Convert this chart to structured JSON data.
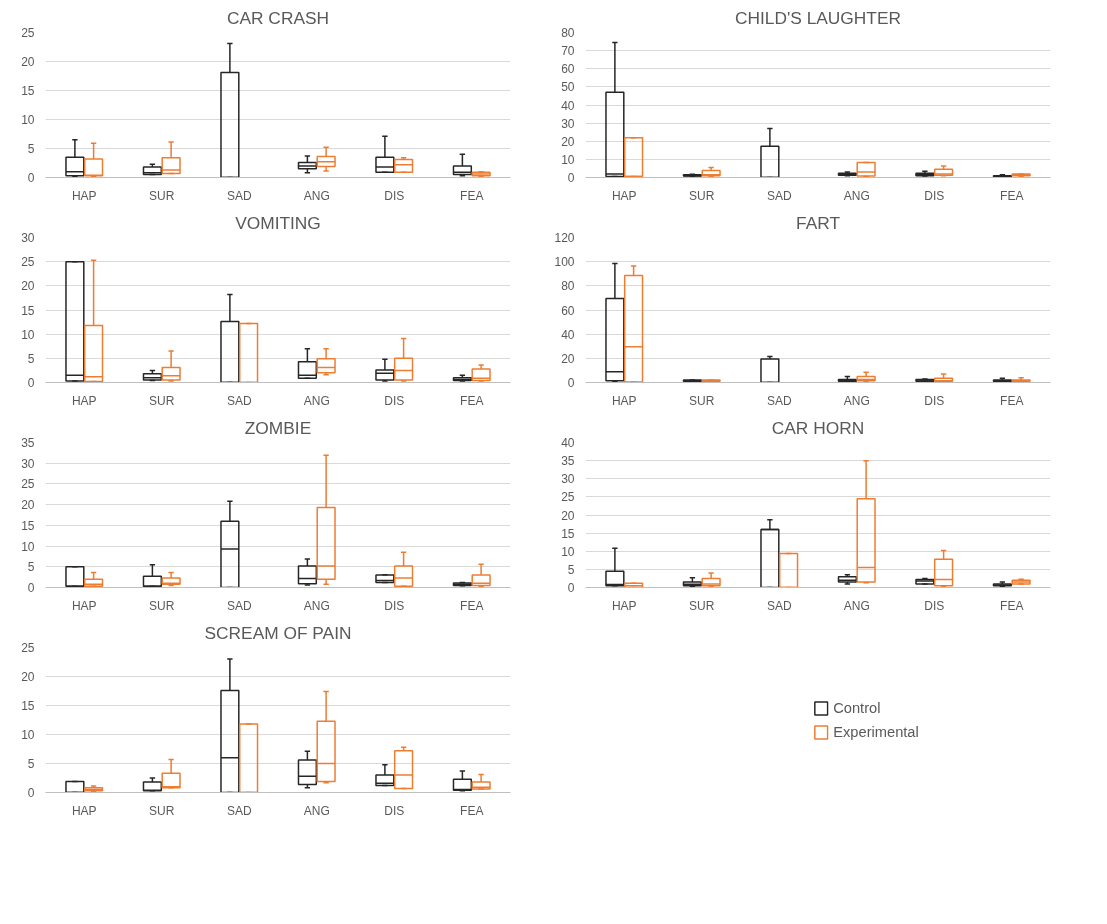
{
  "chart_data": [
    {
      "type": "box",
      "title": "CAR CRASH",
      "categories": [
        "HAP",
        "SUR",
        "SAD",
        "ANG",
        "DIS",
        "FEA"
      ],
      "ylim": [
        0,
        25
      ],
      "yticks": [
        0,
        5,
        10,
        15,
        20,
        25
      ],
      "grid": "y",
      "series": [
        {
          "color": "#262626",
          "boxes": [
            {
              "low": 0.2,
              "q1": 0.3,
              "median": 1,
              "q3": 3.5,
              "high": 6.5
            },
            {
              "low": 0.5,
              "q1": 0.5,
              "median": 0.8,
              "q3": 1.8,
              "high": 2.3
            },
            {
              "low": 0,
              "q1": 0,
              "median": 0,
              "q3": 18.1,
              "high": 23.1
            },
            {
              "low": 0.8,
              "q1": 1.5,
              "median": 2,
              "q3": 2.6,
              "high": 3.7
            },
            {
              "low": 0.9,
              "q1": 0.9,
              "median": 1.8,
              "q3": 3.5,
              "high": 7.1
            },
            {
              "low": 0.3,
              "q1": 0.5,
              "median": 0.9,
              "q3": 2,
              "high": 4
            }
          ]
        },
        {
          "color": "#ed7d31",
          "boxes": [
            {
              "low": 0.2,
              "q1": 0.3,
              "median": 0.4,
              "q3": 3.2,
              "high": 5.9
            },
            {
              "low": 0.7,
              "q1": 0.7,
              "median": 1.3,
              "q3": 3.4,
              "high": 6.1
            },
            null,
            {
              "low": 1.1,
              "q1": 1.9,
              "median": 2.7,
              "q3": 3.6,
              "high": 5.2
            },
            {
              "low": 0.9,
              "q1": 0.9,
              "median": 2.2,
              "q3": 3.1,
              "high": 3.4
            },
            {
              "low": 0.2,
              "q1": 0.3,
              "median": 0.6,
              "q3": 0.9,
              "high": 1
            }
          ]
        }
      ]
    },
    {
      "type": "box",
      "title": "CHILD'S LAUGHTER",
      "categories": [
        "HAP",
        "SUR",
        "SAD",
        "ANG",
        "DIS",
        "FEA"
      ],
      "ylim": [
        0,
        80
      ],
      "yticks": [
        0,
        10,
        20,
        30,
        40,
        50,
        60,
        70,
        80
      ],
      "grid": "y",
      "series": [
        {
          "color": "#262626",
          "boxes": [
            {
              "low": 0.5,
              "q1": 0.5,
              "median": 2,
              "q3": 47,
              "high": 74.5
            },
            {
              "low": 0.5,
              "q1": 0.8,
              "median": 1,
              "q3": 1.5,
              "high": 1.8
            },
            {
              "low": 0,
              "q1": 0,
              "median": 0,
              "q3": 17.3,
              "high": 27
            },
            {
              "low": 1,
              "q1": 1.2,
              "median": 1.8,
              "q3": 2.3,
              "high": 3
            },
            {
              "low": 0.8,
              "q1": 1,
              "median": 1.5,
              "q3": 2.3,
              "high": 3.5
            },
            {
              "low": 0.3,
              "q1": 0.5,
              "median": 0.7,
              "q3": 1,
              "high": 1.5
            }
          ]
        },
        {
          "color": "#ed7d31",
          "boxes": [
            {
              "low": 0.5,
              "q1": 0.5,
              "median": 0.5,
              "q3": 22,
              "high": 22
            },
            {
              "low": 0.5,
              "q1": 1,
              "median": 1.5,
              "q3": 3.8,
              "high": 5.5
            },
            null,
            {
              "low": 0.5,
              "q1": 0.8,
              "median": 3,
              "q3": 8.3,
              "high": 8.3
            },
            {
              "low": 1,
              "q1": 1.3,
              "median": 2,
              "q3": 4.5,
              "high": 6.3
            },
            {
              "low": 0.5,
              "q1": 1,
              "median": 1.5,
              "q3": 2,
              "high": 2
            }
          ]
        }
      ]
    },
    {
      "type": "box",
      "title": "VOMITING",
      "categories": [
        "HAP",
        "SUR",
        "SAD",
        "ANG",
        "DIS",
        "FEA"
      ],
      "ylim": [
        0,
        30
      ],
      "yticks": [
        0,
        5,
        10,
        15,
        20,
        25,
        30
      ],
      "grid": "y",
      "series": [
        {
          "color": "#262626",
          "boxes": [
            {
              "low": 0.3,
              "q1": 0.3,
              "median": 1.5,
              "q3": 25,
              "high": 25
            },
            {
              "low": 0.4,
              "q1": 0.5,
              "median": 1,
              "q3": 1.8,
              "high": 2.5
            },
            {
              "low": 0,
              "q1": 0,
              "median": 0,
              "q3": 12.6,
              "high": 18.2
            },
            {
              "low": 0.9,
              "q1": 0.9,
              "median": 1.5,
              "q3": 4.3,
              "high": 7
            },
            {
              "low": 0.3,
              "q1": 0.5,
              "median": 1.9,
              "q3": 2.6,
              "high": 4.8
            },
            {
              "low": 0.3,
              "q1": 0.4,
              "median": 0.6,
              "q3": 1,
              "high": 1.5
            }
          ]
        },
        {
          "color": "#ed7d31",
          "boxes": [
            {
              "low": 0.2,
              "q1": 0.2,
              "median": 1.2,
              "q3": 11.8,
              "high": 25.3
            },
            {
              "low": 0.3,
              "q1": 0.5,
              "median": 1.4,
              "q3": 3.1,
              "high": 6.5
            },
            {
              "low": 0,
              "q1": 0,
              "median": 0,
              "q3": 12.2,
              "high": 12.2
            },
            {
              "low": 1.6,
              "q1": 2,
              "median": 3.1,
              "q3": 4.9,
              "high": 7
            },
            {
              "low": 0.3,
              "q1": 0.5,
              "median": 2.5,
              "q3": 5,
              "high": 9.1
            },
            {
              "low": 0.3,
              "q1": 0.4,
              "median": 0.9,
              "q3": 2.8,
              "high": 3.6
            }
          ]
        }
      ]
    },
    {
      "type": "box",
      "title": "FART",
      "categories": [
        "HAP",
        "SUR",
        "SAD",
        "ANG",
        "DIS",
        "FEA"
      ],
      "ylim": [
        0,
        120
      ],
      "yticks": [
        0,
        20,
        40,
        60,
        80,
        100,
        120
      ],
      "grid": "y",
      "series": [
        {
          "color": "#262626",
          "boxes": [
            {
              "low": 1,
              "q1": 1.5,
              "median": 9,
              "q3": 69.5,
              "high": 98.5
            },
            {
              "low": 1,
              "q1": 1,
              "median": 1.5,
              "q3": 2,
              "high": 2
            },
            {
              "low": 0,
              "q1": 0,
              "median": 0,
              "q3": 19.5,
              "high": 21.5
            },
            {
              "low": 0.5,
              "q1": 1,
              "median": 1.5,
              "q3": 2.5,
              "high": 5
            },
            {
              "low": 1,
              "q1": 1,
              "median": 2,
              "q3": 2.5,
              "high": 3
            },
            {
              "low": 0.5,
              "q1": 1,
              "median": 1.5,
              "q3": 2,
              "high": 3.5
            }
          ]
        },
        {
          "color": "#ed7d31",
          "boxes": [
            {
              "low": 0.5,
              "q1": 0.5,
              "median": 29.5,
              "q3": 88.5,
              "high": 96.5
            },
            {
              "low": 1,
              "q1": 1,
              "median": 1.5,
              "q3": 2,
              "high": 2
            },
            null,
            {
              "low": 1,
              "q1": 1.5,
              "median": 2.5,
              "q3": 5,
              "high": 8.5
            },
            {
              "low": 0.5,
              "q1": 1,
              "median": 1.5,
              "q3": 3.5,
              "high": 7
            },
            {
              "low": 0.5,
              "q1": 1,
              "median": 1.5,
              "q3": 2,
              "high": 4
            }
          ]
        }
      ]
    },
    {
      "type": "box",
      "title": "ZOMBIE",
      "categories": [
        "HAP",
        "SUR",
        "SAD",
        "ANG",
        "DIS",
        "FEA"
      ],
      "ylim": [
        0,
        35
      ],
      "yticks": [
        0,
        5,
        10,
        15,
        20,
        25,
        30,
        35
      ],
      "grid": "y",
      "series": [
        {
          "color": "#262626",
          "boxes": [
            {
              "low": 0.3,
              "q1": 0.3,
              "median": 0.3,
              "q3": 5,
              "high": 5
            },
            {
              "low": 0.3,
              "q1": 0.3,
              "median": 0.3,
              "q3": 2.7,
              "high": 5.5
            },
            {
              "low": 0,
              "q1": 0,
              "median": 9.3,
              "q3": 16,
              "high": 20.8
            },
            {
              "low": 0.6,
              "q1": 0.9,
              "median": 2.2,
              "q3": 5.2,
              "high": 6.9
            },
            {
              "low": 1.2,
              "q1": 1.2,
              "median": 1.7,
              "q3": 3,
              "high": 3.1
            },
            {
              "low": 0.4,
              "q1": 0.5,
              "median": 0.8,
              "q3": 1.1,
              "high": 1.2
            }
          ]
        },
        {
          "color": "#ed7d31",
          "boxes": [
            {
              "low": 0.3,
              "q1": 0.3,
              "median": 0.8,
              "q3": 2,
              "high": 3.6
            },
            {
              "low": 0.5,
              "q1": 0.8,
              "median": 1,
              "q3": 2.3,
              "high": 3.6
            },
            null,
            {
              "low": 0.8,
              "q1": 2,
              "median": 5.2,
              "q3": 19.3,
              "high": 31.9
            },
            {
              "low": 0.3,
              "q1": 0.3,
              "median": 2.3,
              "q3": 5.2,
              "high": 8.5
            },
            {
              "low": 0.3,
              "q1": 0.5,
              "median": 1,
              "q3": 3,
              "high": 5.6
            }
          ]
        }
      ]
    },
    {
      "type": "box",
      "title": "CAR HORN",
      "categories": [
        "HAP",
        "SUR",
        "SAD",
        "ANG",
        "DIS",
        "FEA"
      ],
      "ylim": [
        0,
        40
      ],
      "yticks": [
        0,
        5,
        10,
        15,
        20,
        25,
        30,
        35,
        40
      ],
      "grid": "y",
      "series": [
        {
          "color": "#262626",
          "boxes": [
            {
              "low": 0.5,
              "q1": 0.5,
              "median": 0.8,
              "q3": 4.5,
              "high": 10.8
            },
            {
              "low": 0.3,
              "q1": 0.5,
              "median": 0.9,
              "q3": 1.5,
              "high": 2.7
            },
            {
              "low": 0,
              "q1": 0,
              "median": 16,
              "q3": 16,
              "high": 18.7
            },
            {
              "low": 1,
              "q1": 1.5,
              "median": 2,
              "q3": 3,
              "high": 3.5
            },
            {
              "low": 1,
              "q1": 1,
              "median": 1.8,
              "q3": 2.2,
              "high": 2.5
            },
            {
              "low": 0.3,
              "q1": 0.5,
              "median": 0.7,
              "q3": 1,
              "high": 1.5
            }
          ]
        },
        {
          "color": "#ed7d31",
          "boxes": [
            {
              "low": 0,
              "q1": 0,
              "median": 0.5,
              "q3": 1.2,
              "high": 1.2
            },
            {
              "low": 0.3,
              "q1": 0.5,
              "median": 1,
              "q3": 2.5,
              "high": 4
            },
            {
              "low": 0,
              "q1": 0,
              "median": 0,
              "q3": 9.4,
              "high": 9.4
            },
            {
              "low": 1.3,
              "q1": 1.5,
              "median": 5.5,
              "q3": 24.5,
              "high": 35
            },
            {
              "low": 0.3,
              "q1": 0.5,
              "median": 2.2,
              "q3": 7.8,
              "high": 10.2
            },
            {
              "low": 1,
              "q1": 1,
              "median": 1.5,
              "q3": 2,
              "high": 2.3
            }
          ]
        }
      ]
    },
    {
      "type": "box",
      "title": "SCREAM OF PAIN",
      "categories": [
        "HAP",
        "SUR",
        "SAD",
        "ANG",
        "DIS",
        "FEA"
      ],
      "ylim": [
        0,
        25
      ],
      "yticks": [
        0,
        5,
        10,
        15,
        20,
        25
      ],
      "grid": "y",
      "legend": "right",
      "series": [
        {
          "name": "Control",
          "color": "#262626",
          "boxes": [
            {
              "low": 0,
              "q1": 0,
              "median": 0,
              "q3": 1.9,
              "high": 1.9
            },
            {
              "low": 0.3,
              "q1": 0.3,
              "median": 0.4,
              "q3": 1.8,
              "high": 2.5
            },
            {
              "low": 0,
              "q1": 0,
              "median": 6,
              "q3": 17.6,
              "high": 23
            },
            {
              "low": 0.8,
              "q1": 1.4,
              "median": 2.8,
              "q3": 5.6,
              "high": 7.1
            },
            {
              "low": 1.2,
              "q1": 1.2,
              "median": 1.6,
              "q3": 3,
              "high": 4.8
            },
            {
              "low": 0.3,
              "q1": 0.4,
              "median": 0.5,
              "q3": 2.3,
              "high": 3.7
            }
          ]
        },
        {
          "name": "Experimental",
          "color": "#ed7d31",
          "boxes": [
            {
              "low": 0.2,
              "q1": 0.3,
              "median": 0.5,
              "q3": 0.8,
              "high": 1.1
            },
            {
              "low": 0.8,
              "q1": 0.8,
              "median": 1,
              "q3": 3.3,
              "high": 5.7
            },
            {
              "low": 0,
              "q1": 0,
              "median": 0,
              "q3": 11.8,
              "high": 11.8
            },
            {
              "low": 1.7,
              "q1": 1.9,
              "median": 5,
              "q3": 12.3,
              "high": 17.4
            },
            {
              "low": 0.7,
              "q1": 0.7,
              "median": 3,
              "q3": 7.2,
              "high": 7.8
            },
            {
              "low": 0.6,
              "q1": 0.6,
              "median": 0.9,
              "q3": 1.8,
              "high": 3.1
            }
          ]
        }
      ]
    }
  ]
}
